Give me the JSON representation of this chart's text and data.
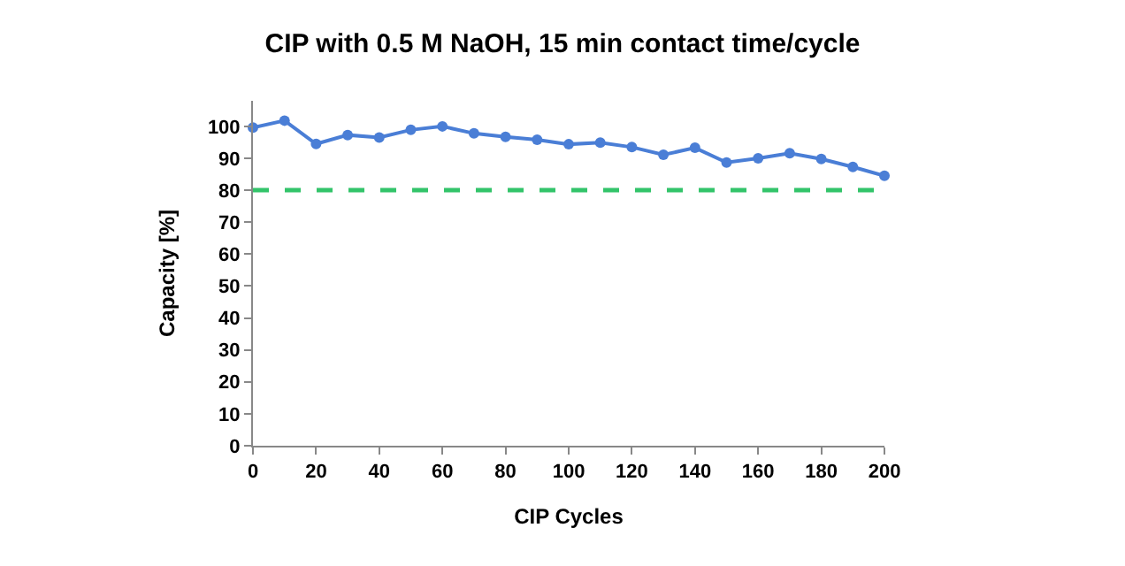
{
  "chart_data": {
    "type": "line",
    "title": "CIP with 0.5 M NaOH, 15 min contact time/cycle",
    "xlabel": "CIP Cycles",
    "ylabel": "Capacity [%]",
    "x": [
      0,
      10,
      20,
      30,
      40,
      50,
      60,
      70,
      80,
      90,
      100,
      110,
      120,
      130,
      140,
      150,
      160,
      170,
      180,
      190,
      200
    ],
    "series": [
      {
        "color": "#4a7ed6",
        "values": [
          99.6,
          101.8,
          94.5,
          97.3,
          96.5,
          98.9,
          100,
          97.8,
          96.7,
          95.8,
          94.4,
          94.9,
          93.5,
          91.1,
          93.3,
          88.7,
          90,
          91.6,
          89.8,
          87.3,
          84.5
        ]
      }
    ],
    "marker": "circle",
    "line_style": "solid",
    "legend": false,
    "xlim": [
      0,
      200
    ],
    "xticks": [
      0,
      20,
      40,
      60,
      80,
      100,
      120,
      140,
      160,
      180,
      200
    ],
    "ylim": [
      0,
      108
    ],
    "yticks": [
      0,
      10,
      20,
      30,
      40,
      50,
      60,
      70,
      80,
      90,
      100
    ],
    "ref_lines": [
      {
        "axis": "y",
        "value": 80,
        "color": "#33c46a",
        "line_style": "dashed"
      }
    ]
  }
}
